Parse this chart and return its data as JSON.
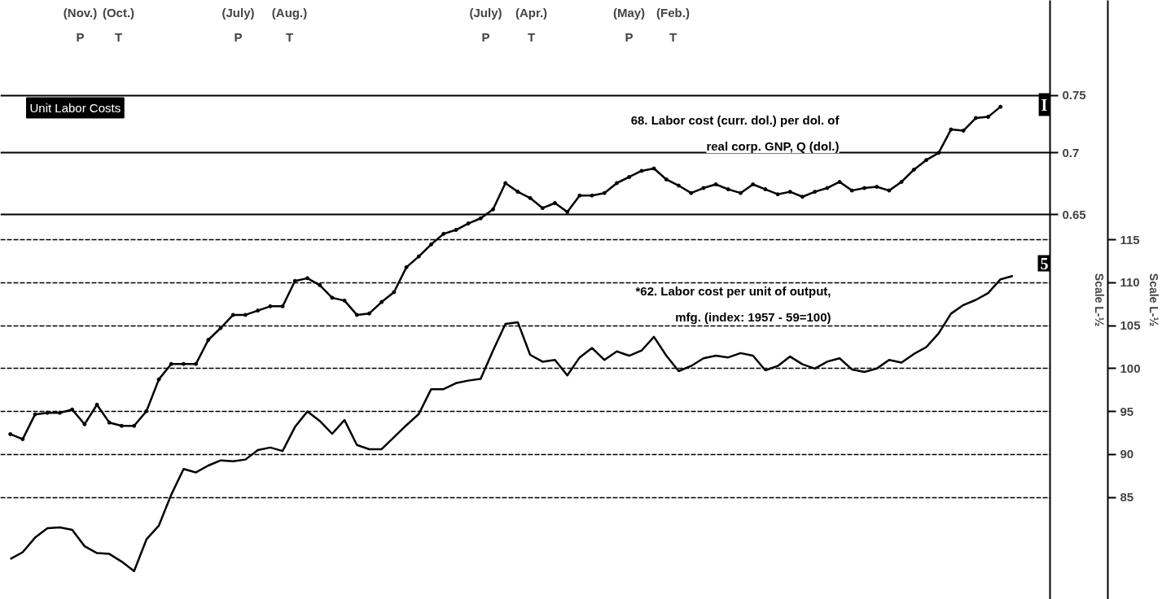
{
  "chart_data": {
    "type": "line",
    "title": "Unit Labor Costs",
    "categories": [
      null,
      null,
      null,
      null,
      null,
      null,
      null,
      null,
      null,
      null,
      null,
      null,
      null,
      null,
      null,
      null,
      null,
      null,
      null,
      null,
      null,
      null,
      null,
      null,
      null,
      null,
      null,
      null,
      null,
      null,
      null,
      null,
      null,
      null,
      null,
      null,
      null,
      null,
      null,
      null,
      null,
      null,
      null,
      null,
      null,
      null,
      null,
      null,
      null,
      null,
      null,
      null,
      null,
      null,
      null,
      null,
      null,
      null,
      null,
      null,
      null,
      null,
      null,
      null,
      null,
      null,
      null,
      null,
      null,
      null,
      null,
      null,
      null,
      null,
      null,
      null,
      null,
      null,
      null,
      null,
      null,
      null
    ],
    "series": [
      {
        "name": "68. Labor cost (curr. dol.) per dol. of\nreal corp. GNP, Q (dol.)",
        "color": "#000000",
        "marker": "circle",
        "values": [
          0.499,
          0.496,
          0.511,
          0.512,
          0.512,
          0.514,
          0.505,
          0.517,
          0.506,
          0.504,
          0.504,
          0.513,
          0.533,
          0.543,
          0.543,
          0.543,
          0.559,
          0.567,
          0.576,
          0.576,
          0.579,
          0.582,
          0.582,
          0.6,
          0.602,
          0.597,
          0.588,
          0.586,
          0.576,
          0.577,
          0.585,
          0.592,
          0.61,
          0.618,
          0.627,
          0.635,
          0.638,
          0.643,
          0.647,
          0.654,
          0.675,
          0.668,
          0.663,
          0.655,
          0.659,
          0.652,
          0.665,
          0.665,
          0.667,
          0.675,
          0.68,
          0.685,
          0.687,
          0.678,
          0.673,
          0.667,
          0.671,
          0.674,
          0.67,
          0.667,
          0.674,
          0.67,
          0.666,
          0.668,
          0.664,
          0.668,
          0.671,
          0.676,
          0.669,
          0.671,
          0.672,
          0.669,
          0.676,
          0.686,
          0.694,
          0.7,
          0.72,
          0.719,
          0.73,
          0.731,
          0.74,
          null
        ]
      },
      {
        "name": "*62. Labor cost per unit of output,\nmfg. (index: 1957 - 59=100)",
        "color": "#000000",
        "axis": "y2",
        "values": [
          77.8,
          78.6,
          80.3,
          81.4,
          81.5,
          81.2,
          79.3,
          78.5,
          78.4,
          77.5,
          76.4,
          80.1,
          81.7,
          85.3,
          88.3,
          87.9,
          88.7,
          89.3,
          89.2,
          89.4,
          90.5,
          90.8,
          90.4,
          93.2,
          95.0,
          93.9,
          92.4,
          94.0,
          91.1,
          90.6,
          90.6,
          92.0,
          93.4,
          94.7,
          97.6,
          97.6,
          98.3,
          98.6,
          98.8,
          102.1,
          105.2,
          105.4,
          101.6,
          100.8,
          101.0,
          99.2,
          101.3,
          102.4,
          101.0,
          102.0,
          101.5,
          102.1,
          103.7,
          101.5,
          99.7,
          100.3,
          101.2,
          101.5,
          101.3,
          101.8,
          101.5,
          99.8,
          100.3,
          101.4,
          100.5,
          100.0,
          100.8,
          101.2,
          99.9,
          99.6,
          100.0,
          101.0,
          100.7,
          101.7,
          102.5,
          104.1,
          106.4,
          107.4,
          108.0,
          108.8,
          110.4,
          110.8
        ]
      }
    ],
    "ylabel": "Scale L-½",
    "y2label": "Scale L-½",
    "ylim": [
      0.409,
      0.841
    ],
    "yticks": [
      0.65,
      0.7,
      0.75
    ],
    "y2lim": [
      73.1,
      142.9
    ],
    "y2ticks": [
      85,
      90,
      95,
      100,
      105,
      110,
      115
    ],
    "log": "y",
    "grid": "y",
    "annotations": [
      "(Nov.)\nP",
      "(Oct.)\nT",
      "(July)\nP",
      "(Aug.)\nT",
      "(July)\nP",
      "(Apr.)\nT",
      "(May)\nP",
      "(Feb.)\nT",
      "I",
      "5"
    ]
  }
}
